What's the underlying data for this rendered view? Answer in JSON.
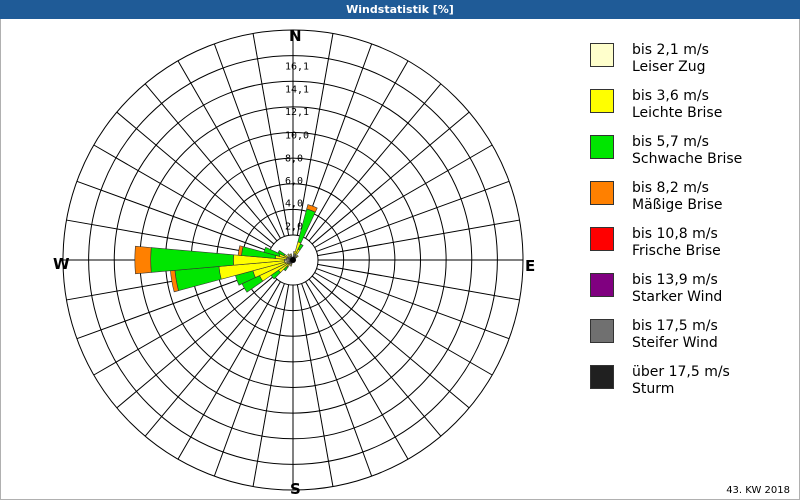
{
  "title": "Windstatistik [%]",
  "footer": "43. KW 2018",
  "compass": {
    "n": "N",
    "e": "E",
    "s": "S",
    "w": "W"
  },
  "legend": [
    {
      "line1": "bis 2,1 m/s",
      "line2": "Leiser Zug",
      "color": "#ffffcc"
    },
    {
      "line1": "bis 3,6 m/s",
      "line2": "Leichte Brise",
      "color": "#ffff00"
    },
    {
      "line1": "bis 5,7 m/s",
      "line2": "Schwache Brise",
      "color": "#00e600"
    },
    {
      "line1": "bis 8,2 m/s",
      "line2": "Mäßige Brise",
      "color": "#ff8000"
    },
    {
      "line1": "bis 10,8 m/s",
      "line2": "Frische Brise",
      "color": "#ff0000"
    },
    {
      "line1": "bis 13,9 m/s",
      "line2": "Starker Wind",
      "color": "#800080"
    },
    {
      "line1": "bis 17,5 m/s",
      "line2": "Steifer Wind",
      "color": "#707070"
    },
    {
      "line1": "über 17,5 m/s",
      "line2": "Sturm",
      "color": "#202020"
    }
  ],
  "chart_data": {
    "type": "wind-rose",
    "title": "Windstatistik [%]",
    "unit": "%",
    "ring_labels": [
      "2,0",
      "4,0",
      "6,0",
      "8,0",
      "10,0",
      "12,1",
      "14,1",
      "16,1"
    ],
    "ring_values": [
      2.0,
      4.0,
      6.0,
      8.0,
      10.0,
      12.1,
      14.1,
      16.1
    ],
    "rmax": 18.1,
    "sector_width_deg": 10,
    "speed_classes": [
      "bis 2,1 m/s",
      "bis 3,6 m/s",
      "bis 5,7 m/s",
      "bis 8,2 m/s",
      "bis 10,8 m/s",
      "bis 13,9 m/s",
      "bis 17,5 m/s",
      "über 17,5 m/s"
    ],
    "sectors": [
      {
        "dir": 10,
        "values": [
          0.2,
          0.5
        ]
      },
      {
        "dir": 20,
        "values": [
          0.3,
          1.4,
          4.4,
          4.8
        ]
      },
      {
        "dir": 30,
        "values": [
          0.2,
          0.8,
          1.3
        ]
      },
      {
        "dir": 50,
        "values": [
          0.1,
          0.3
        ]
      },
      {
        "dir": 200,
        "values": [
          0.1,
          0.3
        ]
      },
      {
        "dir": 220,
        "values": [
          0.1,
          0.5,
          0.9
        ]
      },
      {
        "dir": 230,
        "values": [
          0.2,
          1.3,
          2.1
        ]
      },
      {
        "dir": 240,
        "values": [
          0.3,
          3.0,
          4.7
        ]
      },
      {
        "dir": 250,
        "values": [
          0.4,
          3.4,
          5.0
        ]
      },
      {
        "dir": 260,
        "values": [
          0.5,
          6.3,
          10.2,
          10.6
        ]
      },
      {
        "dir": 270,
        "values": [
          0.5,
          5.0,
          12.3,
          13.7
        ]
      },
      {
        "dir": 280,
        "values": [
          0.3,
          1.3,
          4.3,
          4.6
        ]
      },
      {
        "dir": 290,
        "values": [
          0.3,
          1.0,
          2.4
        ]
      },
      {
        "dir": 300,
        "values": [
          0.2,
          0.6,
          1.2
        ]
      },
      {
        "dir": 320,
        "values": [
          0.1,
          0.4
        ]
      },
      {
        "dir": 340,
        "values": [
          0.1,
          0.3
        ]
      }
    ]
  }
}
